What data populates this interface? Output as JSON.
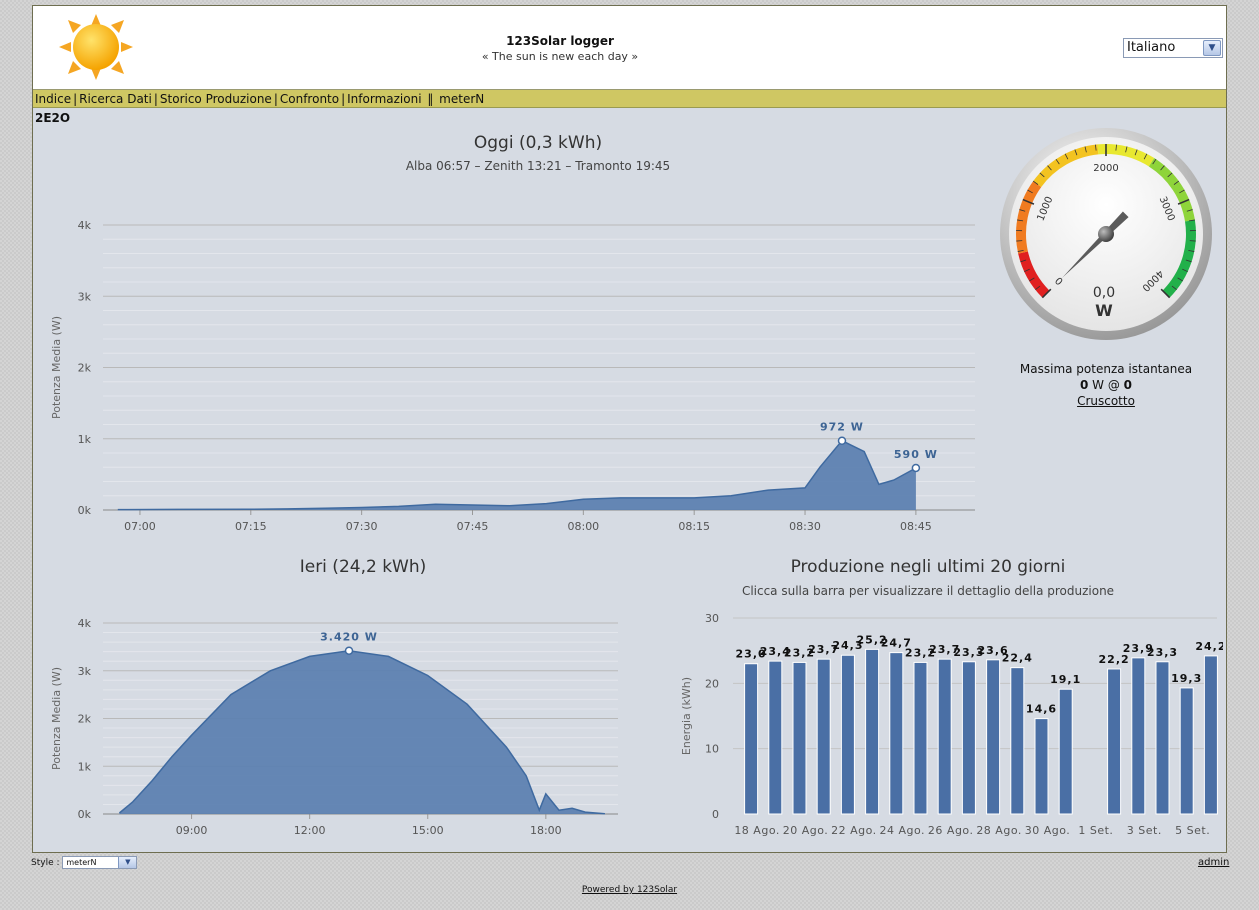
{
  "header": {
    "title": "123Solar logger",
    "subtitle": "« The sun is new each day »",
    "language": "Italiano"
  },
  "nav": {
    "items": [
      "Indice",
      "Ricerca Dati",
      "Storico Produzione",
      "Confronto",
      "Informazioni"
    ],
    "extra": "meterN"
  },
  "device": "2E2O",
  "today": {
    "title": "Oggi (0,3 kWh)",
    "subtitle": "Alba 06:57 – Zenith 13:21 – Tramonto 19:45"
  },
  "yesterday": {
    "title": "Ieri (24,2 kWh)"
  },
  "production": {
    "title": "Produzione negli ultimi 20 giorni",
    "subtitle": "Clicca sulla barra per visualizzare il dettaglio della produzione"
  },
  "gauge": {
    "value": "0,0",
    "unit": "W",
    "ticks": [
      "0",
      "1000",
      "2000",
      "3000",
      "4000"
    ],
    "max_label": "Massima potenza istantanea",
    "max_value": "0",
    "max_unit": "W @",
    "max_time": "0",
    "dashboard_link": "Cruscotto"
  },
  "footer": {
    "style_label": "Style :",
    "style_value": "meterN",
    "admin": "admin",
    "powered": "Powered by 123Solar"
  },
  "chart_data": [
    {
      "type": "area",
      "name": "today",
      "title": "Oggi (0,3 kWh)",
      "ylabel": "Potenza Media (W)",
      "x_ticks": [
        "07:00",
        "07:15",
        "07:30",
        "07:45",
        "08:00",
        "08:15",
        "08:30",
        "08:45"
      ],
      "y_ticks": [
        "0k",
        "1k",
        "2k",
        "3k",
        "4k"
      ],
      "x_range": [
        "06:55",
        "08:53"
      ],
      "ylim": [
        0,
        4000
      ],
      "x": [
        "06:57",
        "07:05",
        "07:15",
        "07:20",
        "07:25",
        "07:30",
        "07:35",
        "07:40",
        "07:45",
        "07:50",
        "07:55",
        "08:00",
        "08:05",
        "08:10",
        "08:15",
        "08:20",
        "08:25",
        "08:30",
        "08:32",
        "08:35",
        "08:38",
        "08:40",
        "08:42",
        "08:45"
      ],
      "y": [
        5,
        8,
        10,
        15,
        25,
        35,
        50,
        80,
        70,
        60,
        90,
        150,
        170,
        170,
        170,
        200,
        280,
        310,
        600,
        972,
        820,
        360,
        420,
        590
      ],
      "annotations": [
        {
          "x": "08:35",
          "y": 972,
          "label": "972 W"
        },
        {
          "x": "08:45",
          "y": 590,
          "label": "590 W"
        }
      ],
      "color": "#5a7fb0"
    },
    {
      "type": "area",
      "name": "yesterday",
      "title": "Ieri (24,2 kWh)",
      "ylabel": "Potenza Media (W)",
      "x_ticks": [
        "09:00",
        "12:00",
        "15:00",
        "18:00"
      ],
      "y_ticks": [
        "0k",
        "1k",
        "2k",
        "3k",
        "4k"
      ],
      "x_range": [
        "06:45",
        "19:50"
      ],
      "ylim": [
        0,
        4000
      ],
      "x": [
        "07:10",
        "07:30",
        "08:00",
        "08:30",
        "09:00",
        "10:00",
        "11:00",
        "12:00",
        "13:00",
        "14:00",
        "15:00",
        "16:00",
        "17:00",
        "17:30",
        "17:50",
        "18:00",
        "18:20",
        "18:40",
        "19:00",
        "19:30"
      ],
      "y": [
        20,
        250,
        700,
        1200,
        1650,
        2500,
        3000,
        3300,
        3420,
        3300,
        2900,
        2300,
        1400,
        800,
        80,
        420,
        80,
        120,
        40,
        5
      ],
      "annotations": [
        {
          "x": "13:00",
          "y": 3420,
          "label": "3.420 W"
        }
      ],
      "color": "#5a7fb0"
    },
    {
      "type": "bar",
      "name": "production",
      "title": "Produzione negli ultimi 20 giorni",
      "ylabel": "Energia (kWh)",
      "ylim": [
        0,
        30
      ],
      "y_ticks": [
        "0",
        "10",
        "20",
        "30"
      ],
      "categories": [
        "18 Ago.",
        "19 Ago.",
        "20 Ago.",
        "21 Ago.",
        "22 Ago.",
        "23 Ago.",
        "24 Ago.",
        "25 Ago.",
        "26 Ago.",
        "27 Ago.",
        "28 Ago.",
        "29 Ago.",
        "30 Ago.",
        "31 Ago.",
        "1 Set.",
        "2 Set.",
        "3 Set.",
        "4 Set.",
        "5 Set.",
        "6 Set."
      ],
      "x_tick_labels": [
        "18 Ago.",
        "20 Ago.",
        "22 Ago.",
        "24 Ago.",
        "26 Ago.",
        "28 Ago.",
        "30 Ago.",
        "1 Set.",
        "3 Set.",
        "5 Set."
      ],
      "values": [
        23.0,
        23.4,
        23.2,
        23.7,
        24.3,
        25.2,
        24.7,
        23.2,
        23.7,
        23.3,
        23.6,
        22.4,
        14.6,
        19.1,
        null,
        22.2,
        23.9,
        23.3,
        19.3,
        24.2
      ],
      "value_labels": [
        "23,0",
        "23,4",
        "23,2",
        "23,7",
        "24,3",
        "25,2",
        "24,7",
        "23,2",
        "23,7",
        "23,3",
        "23,6",
        "22,4",
        "14,6",
        "19,1",
        "",
        "22,2",
        "23,9",
        "23,3",
        "19,3",
        "24,2"
      ],
      "color": "#4a6fa5"
    }
  ]
}
